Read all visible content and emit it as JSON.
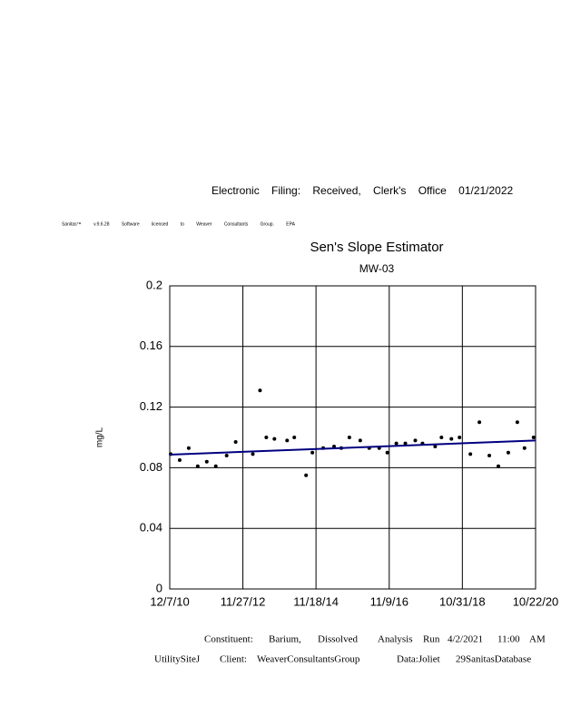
{
  "header": {
    "filing": "Electronic Filing: Received, Clerk's Office 01/21/2022",
    "license": "Sanitas™ v.9.6.28 Software licensed to Weaver Consultants Group. EPA"
  },
  "chart_data": {
    "type": "scatter",
    "title": "Sen's Slope Estimator",
    "subtitle": "MW-03",
    "ylabel": "mg/L",
    "x": [
      "12/16/10",
      "3/15/11",
      "6/12/11",
      "9/9/11",
      "12/7/11",
      "3/5/12",
      "6/20/12",
      "9/17/12",
      "3/5/13",
      "5/15/13",
      "7/16/13",
      "10/4/13",
      "2/6/14",
      "4/18/14",
      "8/12/14",
      "10/13/14",
      "1/28/15",
      "5/15/15",
      "7/25/15",
      "10/13/15",
      "1/28/16",
      "4/26/16",
      "8/2/16",
      "10/21/16",
      "1/18/17",
      "4/17/17",
      "7/24/17",
      "10/3/17",
      "2/5/18",
      "4/8/18",
      "7/15/18",
      "10/3/18",
      "1/18/19",
      "4/17/19",
      "7/24/19",
      "10/21/19",
      "1/27/20",
      "4/25/20",
      "7/5/20",
      "10/2/20"
    ],
    "values": [
      0.089,
      0.085,
      0.093,
      0.081,
      0.084,
      0.081,
      0.088,
      0.097,
      0.089,
      0.131,
      0.1,
      0.099,
      0.098,
      0.1,
      0.075,
      0.09,
      0.093,
      0.094,
      0.093,
      0.1,
      0.098,
      0.093,
      0.093,
      0.09,
      0.096,
      0.096,
      0.098,
      0.096,
      0.094,
      0.1,
      0.099,
      0.1,
      0.089,
      0.11,
      0.088,
      0.081,
      0.09,
      0.11,
      0.093,
      0.1
    ],
    "color": "#000000",
    "trend": {
      "x": [
        "12/7/10",
        "10/22/20"
      ],
      "values": [
        0.0886,
        0.098
      ],
      "color": "#000080"
    },
    "xlim": [
      "12/7/10",
      "10/22/20"
    ],
    "xticks": [
      "12/7/10",
      "11/27/12",
      "11/18/14",
      "11/9/16",
      "10/31/18",
      "10/22/20"
    ],
    "ylim": [
      0,
      0.2
    ],
    "yticks": [
      0,
      0.04,
      0.08,
      0.12,
      0.16,
      0.2
    ],
    "grid": true
  },
  "footer": {
    "line1": [
      "Constituent:",
      "Barium,",
      "Dissolved",
      "Analysis",
      "Run",
      "4/2/2021",
      "11:00",
      "AM"
    ],
    "line2": [
      "UtilitySiteJ",
      "Client:",
      "WeaverConsultantsGroup",
      "Data:Joliet",
      "29SanitasDatabase"
    ]
  }
}
